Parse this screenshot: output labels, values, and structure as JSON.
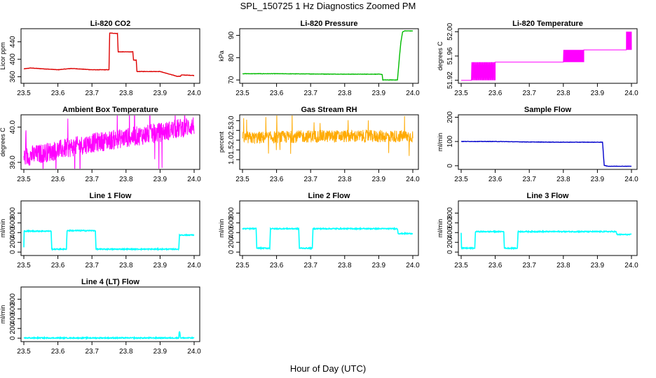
{
  "figure": {
    "title": "SPL_150725  1 Hz Diagnostics Zoomed PM",
    "xlabel": "Hour of Day (UTC)"
  },
  "chart_data": [
    {
      "id": "co2",
      "type": "line",
      "title": "Li-820 CO2",
      "xlabel": "",
      "ylabel": "Licor ppm",
      "color": "#dd0000",
      "xlim": [
        23.5,
        24.0
      ],
      "xticks": [
        23.5,
        23.6,
        23.7,
        23.8,
        23.9,
        24.0
      ],
      "ylim": [
        345,
        470
      ],
      "yticks": [
        360,
        400,
        440
      ],
      "ytick_labels": [
        "360",
        "400",
        "440"
      ],
      "series": [
        {
          "x": [
            23.5,
            23.52,
            23.56,
            23.6,
            23.64,
            23.68,
            23.7,
            23.75,
            23.752,
            23.775,
            23.777,
            23.82,
            23.822,
            23.83,
            23.832,
            23.9,
            23.95,
            23.952,
            23.96,
            23.962,
            24.0
          ],
          "y": [
            378,
            380,
            378,
            376,
            379,
            377,
            376,
            376,
            460,
            459,
            417,
            417,
            398,
            398,
            372,
            372,
            361,
            361,
            361,
            364,
            363
          ]
        }
      ]
    },
    {
      "id": "pressure",
      "type": "line",
      "title": "Li-820 Pressure",
      "xlabel": "",
      "ylabel": "kPa",
      "color": "#00bb00",
      "xlim": [
        23.5,
        24.0
      ],
      "xticks": [
        23.5,
        23.6,
        23.7,
        23.8,
        23.9,
        24.0
      ],
      "ylim": [
        68.5,
        93
      ],
      "yticks": [
        70,
        80,
        90
      ],
      "ytick_labels": [
        "70",
        "80",
        "90"
      ],
      "series": [
        {
          "x": [
            23.5,
            23.6,
            23.7,
            23.8,
            23.9,
            23.91,
            23.912,
            23.955,
            23.96,
            23.965,
            23.97,
            23.975,
            24.0
          ],
          "y": [
            72.8,
            72.8,
            72.7,
            72.6,
            72.6,
            72.5,
            70.0,
            70.0,
            79,
            87,
            91.5,
            92.0,
            92.0
          ]
        }
      ]
    },
    {
      "id": "temperature",
      "type": "line",
      "title": "Li-820 Temperature",
      "xlabel": "",
      "ylabel": "degrees C",
      "color": "#ff00ff",
      "xlim": [
        23.5,
        24.0
      ],
      "xticks": [
        23.5,
        23.6,
        23.7,
        23.8,
        23.9,
        24.0
      ],
      "ylim": [
        51.915,
        52.005
      ],
      "yticks": [
        51.92,
        51.96,
        52.0
      ],
      "ytick_labels": [
        "51.92",
        "51.96",
        "52.00"
      ],
      "levels": [
        51.92,
        51.95,
        51.97,
        52.0
      ],
      "series": [
        {
          "x": [
            23.5,
            23.53,
            23.54,
            23.6,
            23.8,
            23.81,
            23.86,
            23.99,
            24.0
          ],
          "y": [
            51.92,
            51.92,
            51.95,
            51.95,
            51.95,
            51.97,
            51.97,
            51.97,
            52.0
          ]
        }
      ]
    },
    {
      "id": "box_temp",
      "type": "line",
      "title": "Ambient Box Temperature",
      "xlabel": "",
      "ylabel": "degrees C",
      "color": "#ff00ff",
      "xlim": [
        23.5,
        24.0
      ],
      "xticks": [
        23.5,
        23.6,
        23.7,
        23.8,
        23.9,
        24.0
      ],
      "ylim": [
        38.8,
        40.35
      ],
      "yticks": [
        39.0,
        40.0
      ],
      "ytick_labels": [
        "39.0",
        "40.0"
      ],
      "series": [
        {
          "x": [
            23.5,
            23.6,
            23.7,
            23.8,
            23.9,
            24.0
          ],
          "y": [
            39.15,
            39.35,
            39.55,
            39.7,
            39.85,
            40.05
          ]
        }
      ]
    },
    {
      "id": "rh",
      "type": "line",
      "title": "Gas Stream RH",
      "xlabel": "",
      "ylabel": "percent",
      "color": "#ffaa00",
      "xlim": [
        23.5,
        24.0
      ],
      "xticks": [
        23.5,
        23.6,
        23.7,
        23.8,
        23.9,
        24.0
      ],
      "ylim": [
        0.5,
        3.3
      ],
      "yticks": [
        1.0,
        1.5,
        2.0,
        2.5,
        3.0
      ],
      "ytick_labels": [
        "1.0",
        "1.5",
        "2.0",
        "2.5",
        "3.0"
      ],
      "series": [
        {
          "x": [
            23.5,
            23.6,
            23.7,
            23.8,
            23.9,
            24.0
          ],
          "y": [
            2.1,
            2.15,
            2.2,
            2.2,
            2.2,
            2.2
          ]
        }
      ]
    },
    {
      "id": "sample_flow",
      "type": "line",
      "title": "Sample Flow",
      "xlabel": "",
      "ylabel": "ml/min",
      "color": "#0000cc",
      "xlim": [
        23.5,
        24.0
      ],
      "xticks": [
        23.5,
        23.6,
        23.7,
        23.8,
        23.9,
        24.0
      ],
      "ylim": [
        -15,
        210
      ],
      "yticks": [
        0,
        100,
        200
      ],
      "ytick_labels": [
        "0",
        "100",
        "200"
      ],
      "series": [
        {
          "x": [
            23.5,
            23.6,
            23.7,
            23.8,
            23.9,
            23.915,
            23.92,
            23.93,
            24.0
          ],
          "y": [
            100,
            100,
            98,
            97,
            97,
            97,
            2,
            -2,
            -2
          ]
        }
      ]
    },
    {
      "id": "line1",
      "type": "line",
      "title": "Line 1 Flow",
      "xlabel": "",
      "ylabel": "ml/min",
      "color": "#00ffff",
      "xlim": [
        23.5,
        24.0
      ],
      "xticks": [
        23.5,
        23.6,
        23.7,
        23.8,
        23.9,
        24.0
      ],
      "ylim": [
        -70,
        1050
      ],
      "yticks": [
        0,
        200,
        400,
        600,
        800
      ],
      "ytick_labels": [
        "0",
        "200",
        "400",
        "600",
        "800"
      ],
      "series": [
        {
          "x": [
            23.5,
            23.501,
            23.58,
            23.582,
            23.625,
            23.627,
            23.71,
            23.712,
            23.955,
            23.957,
            24.0
          ],
          "y": [
            100,
            430,
            430,
            60,
            60,
            440,
            440,
            60,
            60,
            350,
            350
          ]
        }
      ]
    },
    {
      "id": "line2",
      "type": "line",
      "title": "Line 2 Flow",
      "xlabel": "",
      "ylabel": "ml/min",
      "color": "#00ffff",
      "xlim": [
        23.5,
        24.0
      ],
      "xticks": [
        23.5,
        23.6,
        23.7,
        23.8,
        23.9,
        24.0
      ],
      "ylim": [
        -70,
        1050
      ],
      "yticks": [
        0,
        200,
        400,
        600,
        800
      ],
      "ytick_labels": [
        "0",
        "200",
        "400",
        "600",
        "800"
      ],
      "series": [
        {
          "x": [
            23.5,
            23.54,
            23.542,
            23.58,
            23.582,
            23.665,
            23.667,
            23.705,
            23.707,
            23.955,
            23.957,
            24.0
          ],
          "y": [
            480,
            480,
            80,
            80,
            480,
            480,
            80,
            80,
            480,
            480,
            380,
            380
          ]
        }
      ]
    },
    {
      "id": "line3",
      "type": "line",
      "title": "Line 3 Flow",
      "xlabel": "",
      "ylabel": "ml/min",
      "color": "#00ffff",
      "xlim": [
        23.5,
        24.0
      ],
      "xticks": [
        23.5,
        23.6,
        23.7,
        23.8,
        23.9,
        24.0
      ],
      "ylim": [
        -70,
        1050
      ],
      "yticks": [
        0,
        200,
        400,
        600,
        800
      ],
      "ytick_labels": [
        "0",
        "200",
        "400",
        "600",
        "800"
      ],
      "series": [
        {
          "x": [
            23.5,
            23.501,
            23.54,
            23.542,
            23.625,
            23.627,
            23.665,
            23.667,
            23.955,
            23.957,
            24.0
          ],
          "y": [
            400,
            80,
            80,
            420,
            420,
            80,
            80,
            420,
            420,
            360,
            360
          ]
        }
      ]
    },
    {
      "id": "line4",
      "type": "line",
      "title": "Line 4 (LT) Flow",
      "xlabel": "",
      "ylabel": "ml/min",
      "color": "#00ffff",
      "xlim": [
        23.5,
        24.0
      ],
      "xticks": [
        23.5,
        23.6,
        23.7,
        23.8,
        23.9,
        24.0
      ],
      "ylim": [
        -70,
        1050
      ],
      "yticks": [
        0,
        200,
        400,
        600,
        800
      ],
      "ytick_labels": [
        "0",
        "200",
        "400",
        "600",
        "800"
      ],
      "series": [
        {
          "x": [
            23.5,
            23.955,
            23.956,
            23.958,
            23.96,
            24.0
          ],
          "y": [
            5,
            5,
            120,
            120,
            5,
            5
          ]
        }
      ]
    }
  ]
}
